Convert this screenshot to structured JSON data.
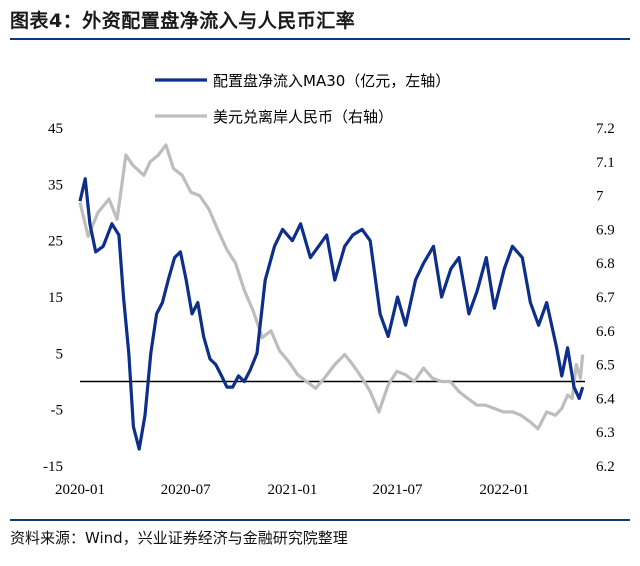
{
  "header": {
    "title": "图表4：外资配置盘净流入与人民币汇率"
  },
  "footer": {
    "source": "资料来源：Wind，兴业证券经济与金融研究院整理"
  },
  "colors": {
    "netflow": "#0d2f8a",
    "cny": "#bdbdbd",
    "rule": "#0f3a7a"
  },
  "chart_data": {
    "type": "line",
    "title": "外资配置盘净流入与人民币汇率",
    "x_ticks": [
      "2020-01",
      "2020-07",
      "2021-01",
      "2021-07",
      "2022-01"
    ],
    "x_range": [
      "2020-01-01",
      "2022-05-20"
    ],
    "y_left": {
      "min": -15,
      "max": 45,
      "ticks": [
        "45",
        "35",
        "25",
        "15",
        "5",
        "-5",
        "-15"
      ]
    },
    "y_right": {
      "min": 6.2,
      "max": 7.2,
      "ticks": [
        "7.2",
        "7.1",
        "7",
        "6.9",
        "6.8",
        "6.7",
        "6.6",
        "6.5",
        "6.4",
        "6.3",
        "6.2"
      ]
    },
    "reference_line_left": 0,
    "legend_position": "top-center",
    "series": [
      {
        "name": "配置盘净流入MA30（亿元，左轴）",
        "axis": "left",
        "points": [
          [
            "2020-01-01",
            32
          ],
          [
            "2020-01-10",
            36
          ],
          [
            "2020-01-18",
            28
          ],
          [
            "2020-01-28",
            23
          ],
          [
            "2020-02-10",
            24
          ],
          [
            "2020-02-25",
            28
          ],
          [
            "2020-03-08",
            26
          ],
          [
            "2020-03-16",
            15
          ],
          [
            "2020-03-25",
            5
          ],
          [
            "2020-04-02",
            -8
          ],
          [
            "2020-04-12",
            -12
          ],
          [
            "2020-04-22",
            -6
          ],
          [
            "2020-05-02",
            5
          ],
          [
            "2020-05-12",
            12
          ],
          [
            "2020-05-22",
            14
          ],
          [
            "2020-06-01",
            18
          ],
          [
            "2020-06-12",
            22
          ],
          [
            "2020-06-22",
            23
          ],
          [
            "2020-07-02",
            18
          ],
          [
            "2020-07-12",
            12
          ],
          [
            "2020-07-22",
            14
          ],
          [
            "2020-08-01",
            8
          ],
          [
            "2020-08-12",
            4
          ],
          [
            "2020-08-22",
            3
          ],
          [
            "2020-09-01",
            1
          ],
          [
            "2020-09-10",
            -1
          ],
          [
            "2020-09-20",
            -1
          ],
          [
            "2020-09-30",
            1
          ],
          [
            "2020-10-10",
            0
          ],
          [
            "2020-10-20",
            2
          ],
          [
            "2020-11-01",
            5
          ],
          [
            "2020-11-15",
            18
          ],
          [
            "2020-12-01",
            24
          ],
          [
            "2020-12-15",
            27
          ],
          [
            "2021-01-01",
            25
          ],
          [
            "2021-01-15",
            28
          ],
          [
            "2021-02-01",
            22
          ],
          [
            "2021-02-15",
            24
          ],
          [
            "2021-03-01",
            26
          ],
          [
            "2021-03-15",
            18
          ],
          [
            "2021-04-01",
            24
          ],
          [
            "2021-04-15",
            26
          ],
          [
            "2021-05-01",
            27
          ],
          [
            "2021-05-15",
            25
          ],
          [
            "2021-06-01",
            12
          ],
          [
            "2021-06-15",
            8
          ],
          [
            "2021-07-01",
            15
          ],
          [
            "2021-07-15",
            10
          ],
          [
            "2021-08-01",
            18
          ],
          [
            "2021-08-15",
            21
          ],
          [
            "2021-09-01",
            24
          ],
          [
            "2021-09-15",
            15
          ],
          [
            "2021-10-01",
            20
          ],
          [
            "2021-10-15",
            22
          ],
          [
            "2021-11-01",
            12
          ],
          [
            "2021-11-15",
            16
          ],
          [
            "2021-12-01",
            22
          ],
          [
            "2021-12-15",
            13
          ],
          [
            "2022-01-01",
            20
          ],
          [
            "2022-01-15",
            24
          ],
          [
            "2022-02-01",
            22
          ],
          [
            "2022-02-15",
            14
          ],
          [
            "2022-03-01",
            10
          ],
          [
            "2022-03-15",
            14
          ],
          [
            "2022-04-01",
            6
          ],
          [
            "2022-04-10",
            1
          ],
          [
            "2022-04-20",
            6
          ],
          [
            "2022-05-01",
            -1
          ],
          [
            "2022-05-10",
            -3
          ],
          [
            "2022-05-16",
            -1
          ]
        ]
      },
      {
        "name": "美元兑离岸人民币（右轴）",
        "axis": "right",
        "points": [
          [
            "2020-01-01",
            6.98
          ],
          [
            "2020-01-15",
            6.88
          ],
          [
            "2020-02-01",
            6.95
          ],
          [
            "2020-02-20",
            6.99
          ],
          [
            "2020-03-05",
            6.93
          ],
          [
            "2020-03-20",
            7.12
          ],
          [
            "2020-04-01",
            7.09
          ],
          [
            "2020-04-20",
            7.06
          ],
          [
            "2020-05-01",
            7.1
          ],
          [
            "2020-05-15",
            7.12
          ],
          [
            "2020-05-28",
            7.15
          ],
          [
            "2020-06-10",
            7.08
          ],
          [
            "2020-06-25",
            7.06
          ],
          [
            "2020-07-10",
            7.01
          ],
          [
            "2020-07-25",
            7.0
          ],
          [
            "2020-08-10",
            6.96
          ],
          [
            "2020-08-25",
            6.9
          ],
          [
            "2020-09-10",
            6.84
          ],
          [
            "2020-09-25",
            6.8
          ],
          [
            "2020-10-10",
            6.72
          ],
          [
            "2020-10-25",
            6.66
          ],
          [
            "2020-11-10",
            6.58
          ],
          [
            "2020-11-25",
            6.6
          ],
          [
            "2020-12-10",
            6.54
          ],
          [
            "2020-12-25",
            6.51
          ],
          [
            "2021-01-10",
            6.47
          ],
          [
            "2021-01-25",
            6.45
          ],
          [
            "2021-02-10",
            6.43
          ],
          [
            "2021-02-25",
            6.46
          ],
          [
            "2021-03-15",
            6.5
          ],
          [
            "2021-04-01",
            6.53
          ],
          [
            "2021-04-15",
            6.5
          ],
          [
            "2021-05-01",
            6.46
          ],
          [
            "2021-05-15",
            6.42
          ],
          [
            "2021-05-30",
            6.36
          ],
          [
            "2021-06-15",
            6.44
          ],
          [
            "2021-06-30",
            6.48
          ],
          [
            "2021-07-15",
            6.47
          ],
          [
            "2021-07-30",
            6.45
          ],
          [
            "2021-08-15",
            6.49
          ],
          [
            "2021-08-30",
            6.46
          ],
          [
            "2021-09-15",
            6.45
          ],
          [
            "2021-09-30",
            6.45
          ],
          [
            "2021-10-15",
            6.42
          ],
          [
            "2021-10-30",
            6.4
          ],
          [
            "2021-11-15",
            6.38
          ],
          [
            "2021-11-30",
            6.38
          ],
          [
            "2021-12-15",
            6.37
          ],
          [
            "2021-12-30",
            6.36
          ],
          [
            "2022-01-15",
            6.36
          ],
          [
            "2022-01-30",
            6.35
          ],
          [
            "2022-02-15",
            6.33
          ],
          [
            "2022-02-28",
            6.31
          ],
          [
            "2022-03-15",
            6.36
          ],
          [
            "2022-03-30",
            6.35
          ],
          [
            "2022-04-10",
            6.37
          ],
          [
            "2022-04-20",
            6.41
          ],
          [
            "2022-04-28",
            6.4
          ],
          [
            "2022-05-05",
            6.5
          ],
          [
            "2022-05-12",
            6.46
          ],
          [
            "2022-05-16",
            6.53
          ]
        ]
      }
    ]
  }
}
